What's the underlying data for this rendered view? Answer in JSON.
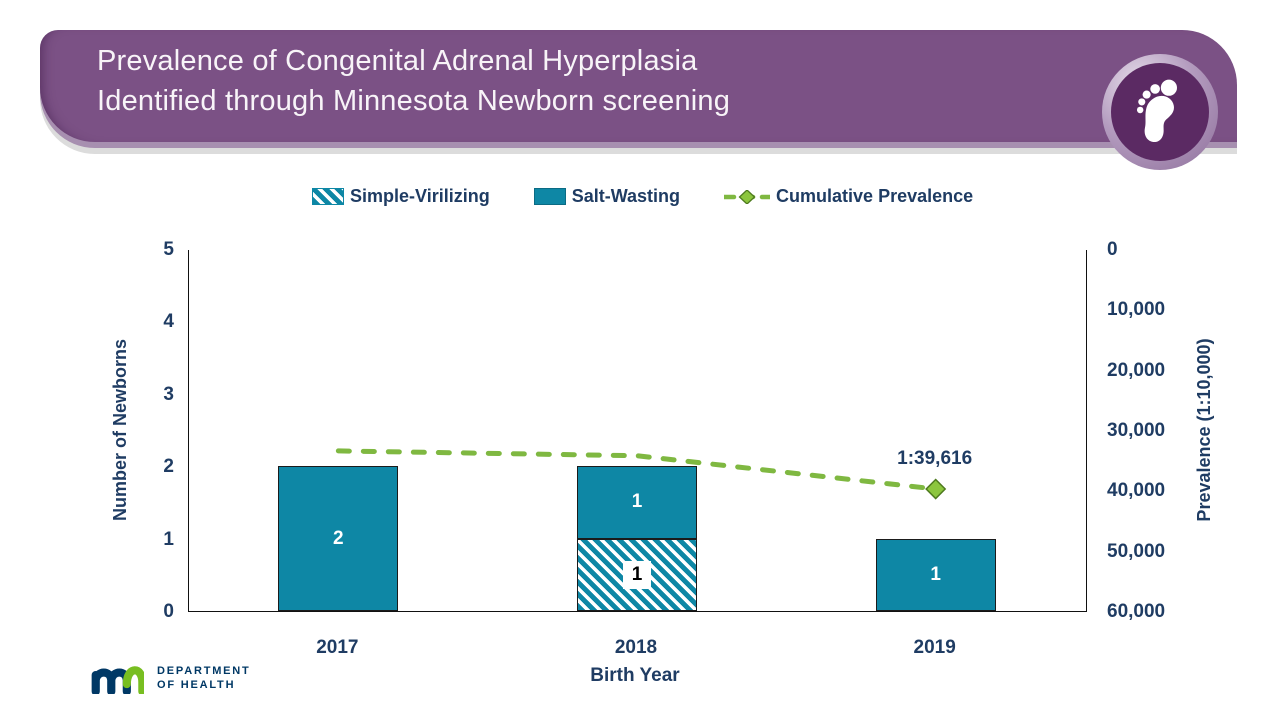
{
  "header": {
    "title_line1": "Prevalence of Congenital Adrenal Hyperplasia",
    "title_line2": "Identified through Minnesota Newborn screening",
    "badge_icon": "baby-footprint-icon"
  },
  "legend": {
    "items": [
      {
        "label": "Simple-Virilizing",
        "swatch": "hatched-teal"
      },
      {
        "label": "Salt-Wasting",
        "swatch": "solid-teal"
      },
      {
        "label": "Cumulative Prevalence",
        "swatch": "green-dashed-line-with-diamond"
      }
    ]
  },
  "chart_data": {
    "type": "bar",
    "subtype": "stacked-bars-with-line-on-secondary-inverted-axis",
    "categories": [
      "2017",
      "2018",
      "2019"
    ],
    "series": [
      {
        "name": "Simple-Virilizing",
        "type": "bar",
        "stack_order": 0,
        "pattern": "diagonal-hatch",
        "values": [
          0,
          1,
          0
        ]
      },
      {
        "name": "Salt-Wasting",
        "type": "bar",
        "stack_order": 1,
        "pattern": "solid",
        "values": [
          2,
          1,
          1
        ]
      },
      {
        "name": "Cumulative Prevalence",
        "type": "line",
        "dashed": true,
        "axis": "right",
        "values": [
          33300,
          34100,
          39616
        ],
        "marker_index": 2,
        "marker_label": "1:39,616"
      }
    ],
    "xlabel": "Birth Year",
    "left_axis": {
      "title": "Number of Newborns",
      "min": 0,
      "max": 5,
      "ticks": [
        "5",
        "4",
        "3",
        "2",
        "1",
        "0"
      ]
    },
    "right_axis": {
      "title": "Prevalence (1:10,000)",
      "min": 0,
      "max": 60000,
      "inverted": true,
      "ticks": [
        "0",
        "10,000",
        "20,000",
        "30,000",
        "40,000",
        "50,000",
        "60,000"
      ]
    },
    "grid": false,
    "legend_position": "top"
  },
  "footer": {
    "logo": "minnesota-mn-logo",
    "org_line1": "DEPARTMENT",
    "org_line2": "OF HEALTH"
  },
  "colors": {
    "banner_purple": "#7B5185",
    "badge_purple": "#5B2A63",
    "bar_teal": "#0E87A5",
    "navy_text": "#1F3C63",
    "line_green": "#7FB841",
    "diamond_green": "#8CC63E",
    "logo_navy": "#003865",
    "logo_green": "#78BE21"
  }
}
